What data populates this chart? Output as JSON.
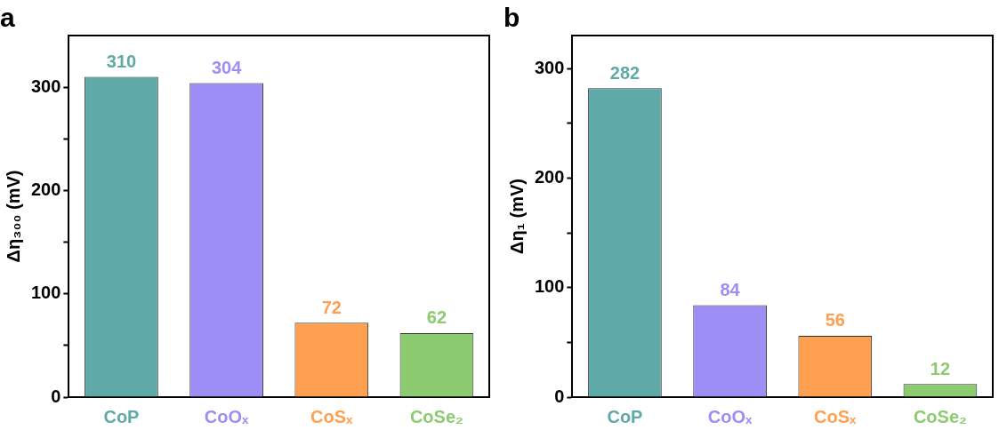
{
  "chart_data": [
    {
      "type": "bar",
      "title": "a",
      "ylabel": "Δη₃₀₀ (mV)",
      "categories": [
        "CoP",
        "CoOₓ",
        "CoSₓ",
        "CoSe₂"
      ],
      "values": [
        310,
        304,
        72,
        62
      ],
      "colors": [
        "#5fa9a9",
        "#9d8ef6",
        "#ffa050",
        "#8ccb70"
      ],
      "ylim": [
        0,
        350
      ],
      "yticks": [
        0,
        {
          "value": 50,
          "label": null
        },
        100,
        {
          "value": 150,
          "label": null
        },
        200,
        {
          "value": 250,
          "label": null
        },
        300
      ],
      "data_labels": true,
      "grid": false,
      "legend": false
    },
    {
      "type": "bar",
      "title": "b",
      "ylabel": "Δη₁ (mV)",
      "categories": [
        "CoP",
        "CoOₓ",
        "CoSₓ",
        "CoSe₂"
      ],
      "values": [
        282,
        84,
        56,
        12
      ],
      "colors": [
        "#5fa9a9",
        "#9d8ef6",
        "#ffa050",
        "#8ccb70"
      ],
      "ylim": [
        0,
        330
      ],
      "yticks": [
        0,
        {
          "value": 50,
          "label": null
        },
        100,
        {
          "value": 150,
          "label": null
        },
        200,
        {
          "value": 250,
          "label": null
        },
        300
      ],
      "data_labels": true,
      "grid": false,
      "legend": false
    }
  ]
}
